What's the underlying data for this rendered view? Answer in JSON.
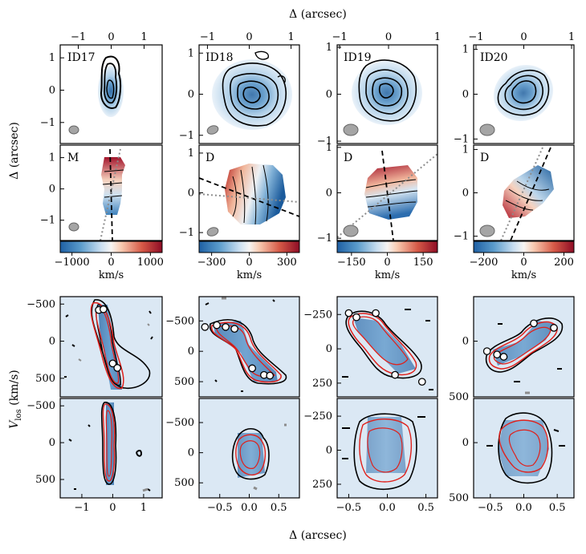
{
  "figure": {
    "top_axis_label": "Δ (arcsec)",
    "bottom_axis_label": "Δ (arcsec)",
    "left_axis_label_map": "Δ (arcsec)",
    "left_axis_label_pv": "V_los (km/s)",
    "colorbar_unit": "km/s"
  },
  "colors": {
    "contour": "#000000",
    "model_contour": "#e0201b",
    "aux_contour": "#8c8c8c",
    "pv_background": "#dbe8f4",
    "beam": "#a5a5a5",
    "pa_line": "#000000",
    "minor_line": "#8c8c8c"
  },
  "chart_data": [
    {
      "type": "heatmap",
      "galaxy": "ID17",
      "rows": [
        {
          "panel": "moment0",
          "label": "ID17",
          "x_ticks": [
            "−1",
            "0",
            "1"
          ],
          "y_ticks": [
            "1",
            "0",
            "−1"
          ],
          "xlim": [
            -1.55,
            1.55
          ],
          "ylim": [
            -1.65,
            1.4
          ]
        },
        {
          "panel": "moment1",
          "label": "M",
          "y_ticks": [
            "1",
            "0",
            "−1"
          ],
          "colorbar": {
            "ticks": [
              "−1000",
              "0",
              "1000"
            ],
            "range": [
              -1300,
              1300
            ]
          }
        },
        {
          "panel": "pv_major",
          "y_ticks": [
            "−500",
            "0",
            "500"
          ],
          "ylim": [
            -600,
            750
          ],
          "points": [
            [
              -0.45,
              -420
            ],
            [
              -0.3,
              -430
            ],
            [
              0.0,
              300
            ],
            [
              0.15,
              360
            ]
          ]
        },
        {
          "panel": "pv_minor",
          "y_ticks": [
            "−500",
            "0",
            "500"
          ],
          "x_ticks": [
            "−1",
            "0",
            "1"
          ],
          "xlim": [
            -1.7,
            1.6
          ],
          "ylim": [
            -600,
            750
          ]
        }
      ]
    },
    {
      "type": "heatmap",
      "galaxy": "ID18",
      "rows": [
        {
          "panel": "moment0",
          "label": "ID18",
          "x_ticks": [
            "−1",
            "0",
            "1"
          ],
          "y_ticks": [
            "1",
            "0",
            "−1"
          ],
          "xlim": [
            -1.2,
            1.2
          ],
          "ylim": [
            -1.2,
            1.2
          ]
        },
        {
          "panel": "moment1",
          "label": "D",
          "y_ticks": [
            "1",
            "0",
            "−1"
          ],
          "colorbar": {
            "ticks": [
              "−300",
              "0",
              "300"
            ],
            "range": [
              -400,
              400
            ]
          }
        },
        {
          "panel": "pv_major",
          "y_ticks": [
            "−500",
            "0",
            "500"
          ],
          "ylim": [
            -900,
            750
          ],
          "points": [
            [
              -0.75,
              -400
            ],
            [
              -0.55,
              -430
            ],
            [
              -0.4,
              -400
            ],
            [
              -0.25,
              -370
            ],
            [
              0.05,
              280
            ],
            [
              0.25,
              390
            ],
            [
              0.35,
              400
            ]
          ]
        },
        {
          "panel": "pv_minor",
          "y_ticks": [
            "−500",
            "0",
            "500"
          ],
          "x_ticks": [
            "−0.5",
            "0.0",
            "0.5"
          ],
          "xlim": [
            -0.85,
            0.85
          ],
          "ylim": [
            -900,
            750
          ]
        }
      ]
    },
    {
      "type": "heatmap",
      "galaxy": "ID19",
      "rows": [
        {
          "panel": "moment0",
          "label": "ID19",
          "x_ticks": [
            "−1",
            "0",
            "1"
          ],
          "y_ticks": [
            "1",
            "0",
            "−1"
          ],
          "xlim": [
            -1.05,
            1.0
          ],
          "ylim": [
            -1.05,
            1.05
          ]
        },
        {
          "panel": "moment1",
          "label": "D",
          "y_ticks": [
            "1",
            "0",
            "−1"
          ],
          "colorbar": {
            "ticks": [
              "−150",
              "0",
              "150"
            ],
            "range": [
              -210,
              210
            ]
          }
        },
        {
          "panel": "pv_major",
          "y_ticks": [
            "−250",
            "0",
            "250"
          ],
          "ylim": [
            -380,
            350
          ],
          "points": [
            [
              -0.5,
              -260
            ],
            [
              -0.4,
              -230
            ],
            [
              -0.15,
              -260
            ],
            [
              0.1,
              190
            ],
            [
              0.45,
              240
            ]
          ]
        },
        {
          "panel": "pv_minor",
          "y_ticks": [
            "−250",
            "0",
            "250"
          ],
          "x_ticks": [
            "−0.5",
            "0.0",
            "0.5"
          ],
          "xlim": [
            -0.65,
            0.65
          ],
          "ylim": [
            -380,
            350
          ]
        }
      ]
    },
    {
      "type": "heatmap",
      "galaxy": "ID20",
      "rows": [
        {
          "panel": "moment0",
          "label": "ID20",
          "x_ticks": [
            "−1",
            "0",
            "1"
          ],
          "y_ticks": [
            "1",
            "0",
            "−1"
          ],
          "xlim": [
            -1.05,
            1.05
          ],
          "ylim": [
            -1.1,
            1.1
          ]
        },
        {
          "panel": "moment1",
          "label": "D",
          "y_ticks": [
            "1",
            "0",
            "−1"
          ],
          "colorbar": {
            "ticks": [
              "−200",
              "0",
              "200"
            ],
            "range": [
              -250,
              250
            ]
          }
        },
        {
          "panel": "pv_major",
          "y_ticks": [
            "0",
            "500"
          ],
          "ylim": [
            -400,
            500
          ],
          "points": [
            [
              -0.55,
              90
            ],
            [
              -0.4,
              120
            ],
            [
              -0.3,
              140
            ],
            [
              0.15,
              -160
            ],
            [
              0.45,
              -120
            ]
          ]
        },
        {
          "panel": "pv_minor",
          "y_ticks": [
            "0",
            "500"
          ],
          "x_ticks": [
            "−0.5",
            "0.0",
            "0.5"
          ],
          "xlim": [
            -0.75,
            0.75
          ],
          "ylim": [
            -400,
            500
          ]
        }
      ]
    }
  ]
}
